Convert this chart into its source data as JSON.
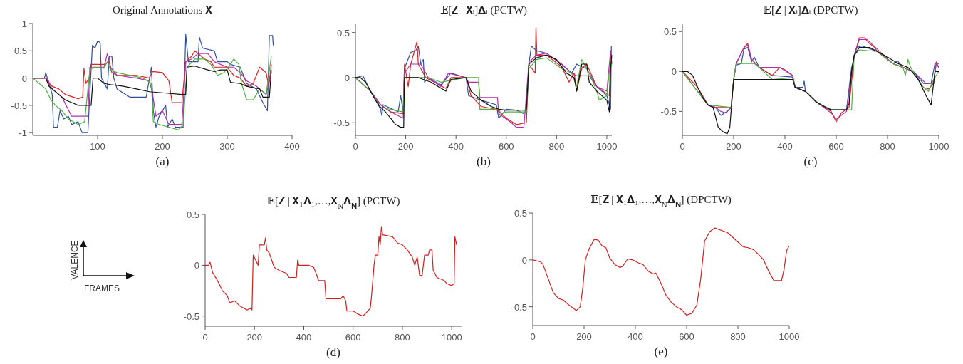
{
  "chart_data": [
    {
      "type": "line",
      "title": "Original Annotations 𝐗",
      "xlabel": "(a)",
      "xlim": [
        0,
        400
      ],
      "ylim": [
        -1.05,
        1
      ],
      "xticks": [
        100,
        200,
        300,
        400
      ],
      "yticks": [
        -1,
        -0.5,
        0,
        0.5,
        1
      ],
      "series": [
        {
          "color": "#3050a0",
          "x": [
            0,
            18,
            20,
            25,
            30,
            32,
            38,
            42,
            48,
            55,
            60,
            70,
            76,
            85,
            88,
            92,
            96,
            100,
            104,
            106,
            115,
            118,
            122,
            125,
            130,
            150,
            175,
            183,
            186,
            190,
            195,
            205,
            208,
            215,
            220,
            232,
            236,
            240,
            255,
            257,
            262,
            280,
            285,
            300,
            305,
            320,
            330,
            345,
            355,
            362,
            365,
            370,
            371
          ],
          "values": [
            0,
            0,
            0.1,
            -0.1,
            -0.3,
            -0.9,
            -0.9,
            -0.6,
            -0.75,
            -0.7,
            -0.85,
            -0.8,
            -1,
            -1,
            -0.3,
            0.6,
            0.55,
            0.68,
            0.65,
            0,
            -0.2,
            0.4,
            0.4,
            0,
            -0.2,
            -0.35,
            -0.35,
            0.2,
            -0.6,
            -0.9,
            -0.7,
            -0.5,
            -0.9,
            -0.75,
            -0.9,
            -0.9,
            0.8,
            0.3,
            0.3,
            0.75,
            0.55,
            0.5,
            0.3,
            0.3,
            0.25,
            0.2,
            -0.1,
            -0.2,
            -0.45,
            -0.6,
            0.78,
            0.78,
            0.6
          ]
        },
        {
          "color": "#e02020",
          "x": [
            0,
            20,
            25,
            30,
            40,
            50,
            70,
            77,
            79,
            82,
            87,
            90,
            110,
            118,
            122,
            130,
            160,
            180,
            185,
            200,
            210,
            215,
            230,
            236,
            245,
            250,
            265,
            275,
            280,
            300,
            310,
            320,
            330,
            340,
            350,
            360,
            364,
            368
          ],
          "values": [
            0,
            0,
            -0.1,
            -0.15,
            -0.2,
            -0.3,
            -0.38,
            -0.35,
            0.18,
            -0.1,
            0,
            0.25,
            0.25,
            0.3,
            0.1,
            0.05,
            0.05,
            0,
            0.12,
            0.1,
            -0.05,
            -0.45,
            -0.45,
            0.3,
            0.4,
            0.5,
            0.35,
            0.3,
            0.2,
            0.2,
            0.05,
            0,
            -0.15,
            -0.1,
            0.2,
            0.1,
            -0.15,
            0.25
          ]
        },
        {
          "color": "#b030b0",
          "x": [
            0,
            22,
            30,
            45,
            60,
            70,
            85,
            88,
            110,
            115,
            120,
            130,
            160,
            180,
            185,
            190,
            200,
            210,
            230,
            236,
            245,
            255,
            270,
            280,
            300,
            310,
            320,
            330,
            345,
            360,
            368
          ],
          "values": [
            0,
            0,
            -0.2,
            -0.35,
            -0.7,
            -0.7,
            -0.7,
            0.2,
            0.2,
            0.45,
            0.2,
            0.05,
            0,
            -0.05,
            -0.3,
            -0.7,
            -0.6,
            -0.85,
            -0.85,
            0.3,
            0.35,
            0.45,
            0.45,
            0.3,
            0.2,
            0.2,
            0.1,
            -0.05,
            -0.15,
            -0.3,
            0.1
          ]
        },
        {
          "color": "#50b040",
          "x": [
            0,
            10,
            20,
            28,
            35,
            45,
            55,
            70,
            80,
            88,
            95,
            110,
            115,
            120,
            130,
            170,
            183,
            186,
            195,
            210,
            225,
            232,
            238,
            250,
            265,
            275,
            285,
            295,
            305,
            310,
            318,
            322,
            330,
            340,
            350,
            360,
            368
          ],
          "values": [
            0,
            -0.1,
            -0.2,
            -0.4,
            -0.5,
            -0.6,
            -0.75,
            -0.85,
            -0.8,
            0.15,
            0.2,
            0.18,
            0.3,
            0.15,
            0.1,
            0,
            -0.1,
            -0.8,
            -0.85,
            -0.9,
            -0.95,
            -0.85,
            0.2,
            0.35,
            0.35,
            0.25,
            0.05,
            0.1,
            0.25,
            0.35,
            0.25,
            -0.1,
            -0.4,
            -0.4,
            -0.2,
            -0.3,
            0.4
          ]
        },
        {
          "color": "#111111",
          "x": [
            0,
            20,
            25,
            30,
            40,
            50,
            60,
            70,
            90,
            93,
            100,
            110,
            120,
            140,
            160,
            180,
            200,
            230,
            236,
            238,
            250,
            270,
            280,
            290,
            300,
            305,
            320,
            330,
            350,
            355,
            365,
            368
          ],
          "values": [
            0,
            0,
            -0.15,
            -0.2,
            -0.3,
            -0.4,
            -0.45,
            -0.5,
            -0.5,
            0,
            0,
            -0.1,
            -0.12,
            -0.15,
            -0.2,
            -0.25,
            -0.27,
            -0.3,
            -0.3,
            0.2,
            0.22,
            0.15,
            0.12,
            0.15,
            0.15,
            -0.08,
            -0.1,
            -0.15,
            -0.2,
            -0.35,
            -0.35,
            0.15
          ]
        }
      ]
    },
    {
      "type": "line",
      "title": "𝔼[𝐙 | 𝐗ᵢ]𝚫ᵢ (PCTW)",
      "xlabel": "(b)",
      "xlim": [
        0,
        1020
      ],
      "ylim": [
        -0.64,
        0.6
      ],
      "xticks": [
        0,
        200,
        400,
        600,
        800,
        1000
      ],
      "yticks": [
        -0.5,
        0,
        0.5
      ],
      "series": [
        {
          "color": "#3050a0",
          "x": [
            0,
            30,
            60,
            100,
            105,
            110,
            170,
            180,
            190,
            195,
            220,
            240,
            250,
            260,
            270,
            275,
            290,
            340,
            380,
            440,
            450,
            500,
            560,
            570,
            600,
            640,
            670,
            680,
            690,
            700,
            720,
            760,
            820,
            860,
            880,
            900,
            920,
            960,
            1000,
            1015,
            1018
          ],
          "values": [
            0,
            0.02,
            -0.15,
            -0.35,
            -0.42,
            -0.3,
            -0.38,
            -0.2,
            -0.38,
            0.1,
            0.28,
            0.3,
            0.35,
            0.15,
            0.2,
            -0.05,
            0,
            -0.08,
            0.05,
            0,
            -0.2,
            -0.25,
            -0.3,
            -0.45,
            -0.35,
            -0.36,
            -0.4,
            -0.36,
            0.15,
            0.35,
            0.3,
            0.27,
            0.15,
            0.05,
            0.15,
            0.12,
            0.1,
            -0.1,
            -0.2,
            -0.35,
            0.35
          ]
        },
        {
          "color": "#e02020",
          "x": [
            0,
            60,
            100,
            140,
            190,
            195,
            210,
            220,
            245,
            250,
            280,
            360,
            380,
            440,
            460,
            500,
            560,
            600,
            640,
            680,
            690,
            715,
            718,
            722,
            760,
            820,
            850,
            870,
            880,
            900,
            920,
            960,
            1010,
            1015,
            1020
          ],
          "values": [
            0,
            -0.15,
            -0.3,
            -0.38,
            -0.4,
            0.15,
            -0.1,
            0.15,
            0.4,
            0.15,
            0,
            -0.12,
            0,
            0,
            -0.2,
            -0.32,
            -0.35,
            -0.45,
            -0.52,
            -0.5,
            0.15,
            0.05,
            0.55,
            0.25,
            0.25,
            0.12,
            -0.05,
            0.05,
            -0.15,
            0.1,
            0.15,
            -0.1,
            -0.2,
            0.3,
            0.15
          ]
        },
        {
          "color": "#b030b0",
          "x": [
            0,
            60,
            100,
            140,
            190,
            195,
            220,
            260,
            290,
            340,
            370,
            440,
            450,
            490,
            495,
            565,
            570,
            620,
            640,
            670,
            690,
            720,
            760,
            820,
            860,
            880,
            930,
            960,
            1000,
            1015
          ],
          "values": [
            0,
            -0.15,
            -0.3,
            -0.38,
            -0.45,
            0.05,
            0.15,
            0.15,
            0,
            -0.1,
            0.05,
            0,
            -0.05,
            -0.05,
            -0.22,
            -0.22,
            -0.4,
            -0.5,
            -0.55,
            -0.55,
            0.17,
            0.25,
            0.27,
            0.15,
            0.05,
            0.02,
            0.02,
            -0.1,
            -0.15,
            0.3
          ]
        },
        {
          "color": "#50b040",
          "x": [
            0,
            60,
            100,
            190,
            195,
            290,
            340,
            440,
            490,
            495,
            570,
            580,
            600,
            680,
            690,
            720,
            760,
            820,
            860,
            880,
            900,
            930,
            960,
            970,
            1000,
            1015
          ],
          "values": [
            0,
            -0.15,
            -0.33,
            -0.38,
            0,
            0,
            -0.05,
            0,
            0,
            -0.35,
            -0.35,
            -0.4,
            -0.38,
            -0.38,
            0.1,
            0.2,
            0.22,
            0.1,
            0.05,
            -0.1,
            0.2,
            0.05,
            -0.15,
            -0.25,
            -0.2,
            0.2
          ]
        },
        {
          "color": "#111111",
          "x": [
            0,
            20,
            40,
            60,
            80,
            100,
            120,
            140,
            160,
            180,
            192,
            195,
            220,
            250,
            270,
            300,
            330,
            360,
            380,
            440,
            460,
            500,
            540,
            570,
            600,
            680,
            690,
            720,
            760,
            800,
            840,
            870,
            880,
            900,
            920,
            930,
            960,
            1000,
            1010,
            1015,
            1020
          ],
          "values": [
            0,
            0,
            -0.05,
            -0.15,
            -0.25,
            -0.33,
            -0.38,
            -0.45,
            -0.52,
            -0.55,
            -0.55,
            0,
            0,
            0,
            -0.02,
            -0.05,
            -0.1,
            -0.15,
            -0.02,
            0,
            -0.15,
            -0.25,
            -0.32,
            -0.35,
            -0.36,
            -0.36,
            0.15,
            0.22,
            0.25,
            0.2,
            0.05,
            0,
            -0.15,
            0.15,
            0.15,
            -0.05,
            -0.15,
            -0.25,
            -0.38,
            0.1,
            0.25
          ]
        }
      ]
    },
    {
      "type": "line",
      "title": "𝔼[𝐙 | 𝐗ᵢ]𝚫ᵢ (DPCTW)",
      "xlabel": "(c)",
      "xlim": [
        0,
        1000
      ],
      "ylim": [
        -0.8,
        0.6
      ],
      "xticks": [
        0,
        200,
        400,
        600,
        800,
        1000
      ],
      "yticks": [
        -0.5,
        0,
        0.5
      ],
      "series": [
        {
          "color": "#3050a0",
          "x": [
            100,
            130,
            150,
            175,
            190,
            200,
            210,
            230,
            240,
            255,
            270,
            280,
            300,
            350,
            430,
            440,
            470,
            475,
            480,
            530,
            560,
            580,
            640,
            660,
            680,
            700,
            760,
            820,
            840,
            860,
            900,
            940,
            970,
            985,
            1000
          ],
          "values": [
            -0.42,
            -0.45,
            -0.55,
            -0.5,
            -0.45,
            -0.1,
            0.08,
            0.1,
            0.28,
            0.3,
            0.12,
            0.18,
            0.05,
            -0.05,
            -0.07,
            -0.2,
            -0.2,
            -0.12,
            -0.25,
            -0.4,
            -0.45,
            -0.48,
            -0.48,
            0.05,
            0.3,
            0.32,
            0.25,
            0.1,
            0.13,
            0.05,
            0,
            -0.15,
            -0.15,
            0.1,
            0.1
          ]
        },
        {
          "color": "#e02020",
          "x": [
            0,
            60,
            100,
            130,
            190,
            200,
            210,
            240,
            255,
            270,
            300,
            350,
            380,
            400,
            430,
            440,
            480,
            530,
            580,
            600,
            620,
            650,
            670,
            690,
            710,
            730,
            750,
            760,
            820,
            860,
            900,
            940,
            960,
            980,
            990,
            1000
          ],
          "values": [
            0,
            -0.2,
            -0.42,
            -0.45,
            -0.45,
            -0.1,
            0.1,
            0.3,
            0.35,
            0.15,
            0.05,
            -0.05,
            0.05,
            0.02,
            -0.05,
            -0.2,
            -0.25,
            -0.4,
            -0.5,
            -0.63,
            -0.52,
            -0.45,
            0.2,
            0.42,
            0.42,
            0.35,
            0.3,
            0.25,
            0.1,
            0.05,
            0,
            -0.2,
            -0.22,
            -0.15,
            0.12,
            0.05
          ]
        },
        {
          "color": "#b030b0",
          "x": [
            0,
            100,
            130,
            150,
            170,
            190,
            200,
            210,
            240,
            255,
            270,
            300,
            380,
            430,
            440,
            480,
            530,
            580,
            600,
            640,
            670,
            690,
            720,
            760,
            820,
            900,
            950,
            980,
            990,
            1000
          ],
          "values": [
            0,
            -0.42,
            -0.45,
            -0.5,
            -0.52,
            -0.45,
            -0.1,
            0.1,
            0.3,
            0.33,
            0.15,
            0.05,
            0.05,
            -0.05,
            -0.2,
            -0.25,
            -0.4,
            -0.52,
            -0.6,
            -0.5,
            0.2,
            0.4,
            0.4,
            0.28,
            0.1,
            0,
            -0.15,
            -0.15,
            0.1,
            0.05
          ]
        },
        {
          "color": "#50b040",
          "x": [
            0,
            100,
            190,
            200,
            210,
            280,
            300,
            350,
            430,
            440,
            480,
            530,
            580,
            660,
            670,
            690,
            760,
            820,
            860,
            870,
            880,
            890,
            940,
            960,
            980,
            1000
          ],
          "values": [
            0,
            -0.42,
            -0.45,
            -0.1,
            0.1,
            0.1,
            0.05,
            -0.1,
            -0.08,
            -0.2,
            -0.25,
            -0.4,
            -0.48,
            -0.48,
            0.2,
            0.27,
            0.25,
            0.1,
            0.05,
            -0.05,
            0.15,
            0.05,
            -0.2,
            -0.25,
            -0.1,
            0
          ]
        },
        {
          "color": "#111111",
          "x": [
            0,
            20,
            40,
            60,
            80,
            100,
            120,
            140,
            160,
            175,
            185,
            195,
            200,
            430,
            440,
            480,
            520,
            560,
            580,
            640,
            650,
            660,
            670,
            690,
            730,
            760,
            800,
            840,
            880,
            900,
            920,
            950,
            970,
            985,
            1000
          ],
          "values": [
            0,
            0,
            -0.05,
            -0.2,
            -0.33,
            -0.42,
            -0.45,
            -0.7,
            -0.76,
            -0.78,
            -0.7,
            -0.3,
            -0.1,
            -0.1,
            -0.2,
            -0.25,
            -0.38,
            -0.45,
            -0.48,
            -0.48,
            -0.4,
            0,
            0.2,
            0.3,
            0.3,
            0.25,
            0.18,
            0.1,
            0.05,
            -0.02,
            -0.1,
            -0.3,
            -0.42,
            0,
            0
          ]
        }
      ]
    },
    {
      "type": "other",
      "annotations": [
        "VALENCE",
        "FRAMES"
      ]
    },
    {
      "type": "line",
      "title": "𝔼[𝐙 | 𝐗₁𝚫₁,…,𝐗$_{N}$𝚫$_{𝐍}$]  (PCTW)",
      "xlabel": "(d)",
      "xlim": [
        0,
        1040
      ],
      "ylim": [
        -0.6,
        0.5
      ],
      "xticks": [
        0,
        200,
        400,
        600,
        800,
        1000
      ],
      "yticks": [
        -0.5,
        0,
        0.5
      ],
      "series": [
        {
          "color": "#d02020",
          "x": [
            0,
            15,
            20,
            30,
            50,
            70,
            90,
            100,
            120,
            140,
            170,
            185,
            190,
            195,
            205,
            215,
            220,
            240,
            245,
            250,
            260,
            270,
            280,
            300,
            330,
            340,
            370,
            375,
            380,
            420,
            440,
            450,
            460,
            485,
            490,
            550,
            560,
            570,
            575,
            600,
            620,
            640,
            660,
            670,
            675,
            685,
            690,
            700,
            705,
            710,
            715,
            720,
            760,
            780,
            800,
            820,
            840,
            850,
            860,
            870,
            880,
            890,
            905,
            910,
            920,
            925,
            940,
            970,
            980,
            1000,
            1010,
            1013,
            1020
          ],
          "values": [
            0,
            0,
            0.03,
            -0.07,
            -0.15,
            -0.25,
            -0.3,
            -0.37,
            -0.35,
            -0.4,
            -0.44,
            -0.42,
            -0.44,
            0.1,
            0.05,
            0,
            0.2,
            0.2,
            0.27,
            0.15,
            0.12,
            0.05,
            -0.02,
            -0.05,
            -0.08,
            -0.12,
            -0.12,
            0.05,
            0,
            0,
            -0.02,
            -0.08,
            -0.15,
            -0.15,
            -0.33,
            -0.33,
            -0.3,
            -0.35,
            -0.45,
            -0.45,
            -0.48,
            -0.5,
            -0.45,
            -0.42,
            -0.3,
            0,
            0.1,
            0.1,
            0.28,
            0.2,
            0.38,
            0.3,
            0.28,
            0.22,
            0.2,
            0.15,
            0.08,
            0,
            0.08,
            -0.1,
            -0.1,
            0.1,
            0.1,
            0.15,
            0.15,
            -0.05,
            -0.12,
            -0.15,
            -0.18,
            -0.2,
            -0.18,
            0.28,
            0.2
          ]
        }
      ]
    },
    {
      "type": "line",
      "title": "𝔼[𝐙 | 𝐗₁𝚫₁,…,𝐗$_{N}$𝚫$_{𝐍}$]  (DPCTW)",
      "xlabel": "(e)",
      "xlim": [
        0,
        1000
      ],
      "ylim": [
        -0.7,
        0.5
      ],
      "xticks": [
        0,
        200,
        400,
        600,
        800,
        1000
      ],
      "yticks": [
        -0.5,
        0,
        0.5
      ],
      "series": [
        {
          "color": "#d02020",
          "x": [
            0,
            30,
            40,
            60,
            80,
            100,
            120,
            140,
            170,
            185,
            195,
            205,
            220,
            240,
            255,
            270,
            285,
            300,
            320,
            340,
            350,
            370,
            390,
            410,
            430,
            450,
            470,
            480,
            500,
            520,
            540,
            560,
            580,
            600,
            620,
            640,
            655,
            670,
            690,
            710,
            740,
            760,
            780,
            800,
            820,
            840,
            860,
            880,
            900,
            920,
            940,
            970,
            980,
            990,
            1000
          ],
          "values": [
            0,
            -0.02,
            -0.05,
            -0.2,
            -0.35,
            -0.41,
            -0.43,
            -0.48,
            -0.54,
            -0.5,
            -0.3,
            0,
            0.12,
            0.22,
            0.21,
            0.15,
            0.13,
            0.02,
            -0.05,
            -0.08,
            -0.07,
            0.01,
            0,
            -0.03,
            -0.05,
            -0.12,
            -0.15,
            -0.14,
            -0.25,
            -0.38,
            -0.45,
            -0.5,
            -0.53,
            -0.59,
            -0.57,
            -0.48,
            -0.2,
            0.2,
            0.3,
            0.34,
            0.31,
            0.29,
            0.24,
            0.19,
            0.14,
            0.13,
            0.11,
            0.06,
            0,
            -0.12,
            -0.22,
            -0.22,
            -0.1,
            0.1,
            0.15
          ]
        }
      ]
    }
  ]
}
